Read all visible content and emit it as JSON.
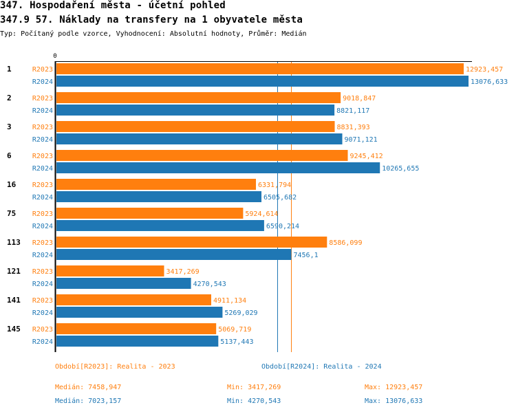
{
  "header": {
    "title": "347. Hospodaření města - účetní pohled",
    "subtitle": "347.9 57. Náklady na transfery na 1 obyvatele města",
    "description": "Typ: Počítaný podle vzorce, Vyhodnocení: Absolutní hodnoty, Průměr: Medián"
  },
  "colors": {
    "R2023": "#ff7f0e",
    "R2024": "#1f77b4",
    "axis": "#000000"
  },
  "chart_data": {
    "type": "bar",
    "orientation": "horizontal",
    "title": "347.9 57. Náklady na transfery na 1 obyvatele města",
    "xlabel": "",
    "ylabel": "",
    "x_tick_labels": [
      "0"
    ],
    "xlim": [
      0,
      13076.633
    ],
    "categories": [
      "1",
      "2",
      "3",
      "6",
      "16",
      "75",
      "113",
      "121",
      "141",
      "145"
    ],
    "series": [
      {
        "name": "R2023",
        "values": [
          12923.457,
          9018.847,
          8831.393,
          9245.412,
          6331.794,
          5924.614,
          8586.099,
          3417.269,
          4911.134,
          5069.719
        ],
        "labels": [
          "12923,457",
          "9018,847",
          "8831,393",
          "9245,412",
          "6331,794",
          "5924,614",
          "8586,099",
          "3417,269",
          "4911,134",
          "5069,719"
        ],
        "median": 7458.947
      },
      {
        "name": "R2024",
        "values": [
          13076.633,
          8821.117,
          9071.121,
          10265.655,
          6505.682,
          6590.214,
          7456.1,
          4270.543,
          5269.029,
          5137.443
        ],
        "labels": [
          "13076,633",
          "8821,117",
          "9071,121",
          "10265,655",
          "6505,682",
          "6590,214",
          "7456,1",
          "4270,543",
          "5269,029",
          "5137,443"
        ],
        "median": 7023.157
      }
    ],
    "reference_lines": [
      {
        "series": "R2023",
        "type": "median",
        "value": 7458.947
      },
      {
        "series": "R2024",
        "type": "median",
        "value": 7023.157
      }
    ]
  },
  "legend": {
    "r2023": {
      "period": "Období[R2023]: Realita - 2023",
      "median": "Medián: 7458,947",
      "min": "Min: 3417,269",
      "max": "Max: 12923,457"
    },
    "r2024": {
      "period": "Období[R2024]: Realita - 2024",
      "median": "Medián: 7023,157",
      "min": "Min: 4270,543",
      "max": "Max: 13076,633"
    }
  }
}
